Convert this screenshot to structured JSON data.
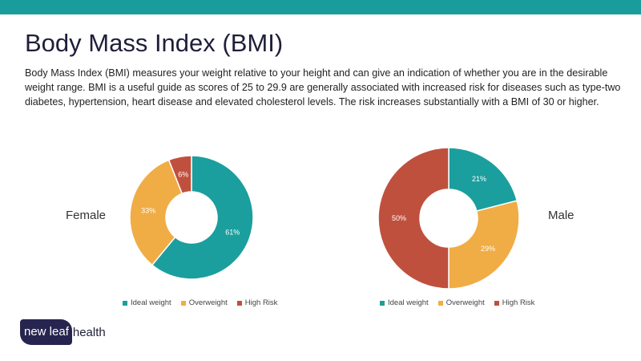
{
  "title": "Body Mass Index (BMI)",
  "description": "Body Mass Index (BMI) measures your weight relative to your height and can give an indication of whether you are in the desirable weight range. BMI is a useful guide as scores of 25 to 29.9 are generally associated with increased risk for diseases such as type-two diabetes, hypertension, heart disease and elevated cholesterol levels. The risk increases substantially with a BMI of 30 or higher.",
  "colors": {
    "ideal": "#1b9e9e",
    "over": "#f0ad45",
    "high": "#c0503e",
    "bar": "#1b9c9c"
  },
  "chart_data": [
    {
      "type": "pie",
      "title": "Female",
      "categories": [
        "Ideal weight",
        "Overweight",
        "High Risk"
      ],
      "values": [
        61,
        33,
        6
      ],
      "labels": [
        "61%",
        "33%",
        "6%"
      ],
      "legend": "bottom"
    },
    {
      "type": "pie",
      "title": "Male",
      "categories": [
        "Ideal weight",
        "Overweight",
        "High Risk"
      ],
      "values": [
        21,
        29,
        50
      ],
      "labels": [
        "21%",
        "29%",
        "50%"
      ],
      "legend": "bottom"
    }
  ],
  "logo": {
    "part1": "new leaf",
    "part2": "health"
  }
}
